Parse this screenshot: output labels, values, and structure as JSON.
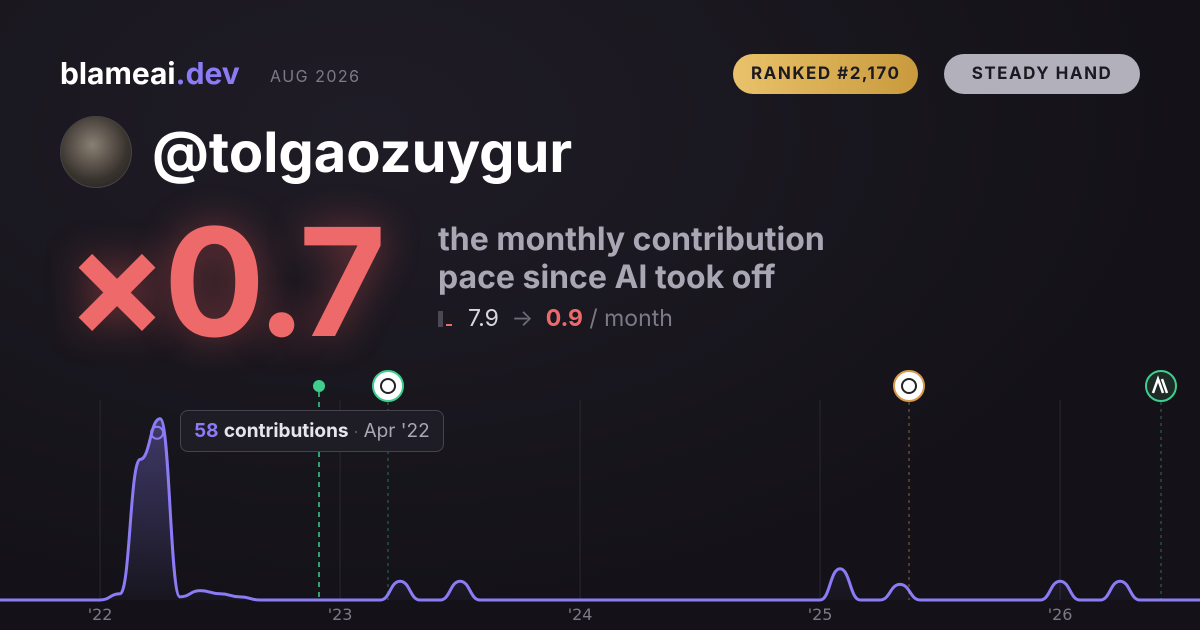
{
  "header": {
    "brand": "blameai",
    "brand_tld": ".dev",
    "period": "AUG 2026",
    "rank_badge": "RANKED #2,170",
    "style_badge": "STEADY HAND"
  },
  "profile": {
    "handle": "@tolgaozuygur"
  },
  "hero": {
    "multiplier": "×0.7",
    "caption_lines": [
      "the monthly contribution",
      "pace since AI took off"
    ],
    "before": "7.9",
    "arrow": "→",
    "after": "0.9",
    "unit": "/ month"
  },
  "tooltip": {
    "label": "contributions",
    "separator": "·",
    "date": "Apr '22"
  },
  "chart_data": {
    "type": "line",
    "series": [
      {
        "name": "contributions",
        "color": "#8b7cf6",
        "x": [
          2021.583,
          2021.667,
          2021.75,
          2021.833,
          2021.917,
          2022,
          2022.083,
          2022.167,
          2022.25,
          2022.333,
          2022.417,
          2022.5,
          2022.583,
          2022.667,
          2022.75,
          2022.833,
          2022.917,
          2023,
          2023.083,
          2023.167,
          2023.25,
          2023.333,
          2023.417,
          2023.5,
          2023.583,
          2023.667,
          2023.75,
          2023.833,
          2023.917,
          2024,
          2024.083,
          2024.167,
          2024.25,
          2024.333,
          2024.417,
          2024.5,
          2024.583,
          2024.667,
          2024.75,
          2024.833,
          2024.917,
          2025,
          2025.083,
          2025.167,
          2025.25,
          2025.333,
          2025.417,
          2025.5,
          2025.583,
          2025.667,
          2025.75,
          2025.833,
          2025.917,
          2026,
          2026.083,
          2026.167,
          2026.25,
          2026.333,
          2026.417,
          2026.5,
          2026.583
        ],
        "values": [
          0,
          0,
          0,
          0,
          0,
          0,
          2,
          45,
          58,
          1,
          3,
          2,
          1,
          0,
          0,
          0,
          0,
          0,
          0,
          0,
          6,
          0,
          0,
          6,
          0,
          0,
          0,
          0,
          0,
          0,
          0,
          0,
          0,
          0,
          0,
          0,
          0,
          0,
          0,
          0,
          0,
          0,
          10,
          0,
          0,
          5,
          0,
          0,
          0,
          0,
          0,
          0,
          0,
          6,
          0,
          0,
          6,
          0,
          0,
          0,
          0
        ]
      }
    ],
    "xlim": [
      2021.583,
      2026.583
    ],
    "ylim": [
      0,
      64
    ],
    "xticks": [
      {
        "value": 2022,
        "label": "'22"
      },
      {
        "value": 2023,
        "label": "'23"
      },
      {
        "value": 2024,
        "label": "'24"
      },
      {
        "value": 2025,
        "label": "'25"
      },
      {
        "value": 2026,
        "label": "'26"
      }
    ],
    "grid": true
  }
}
